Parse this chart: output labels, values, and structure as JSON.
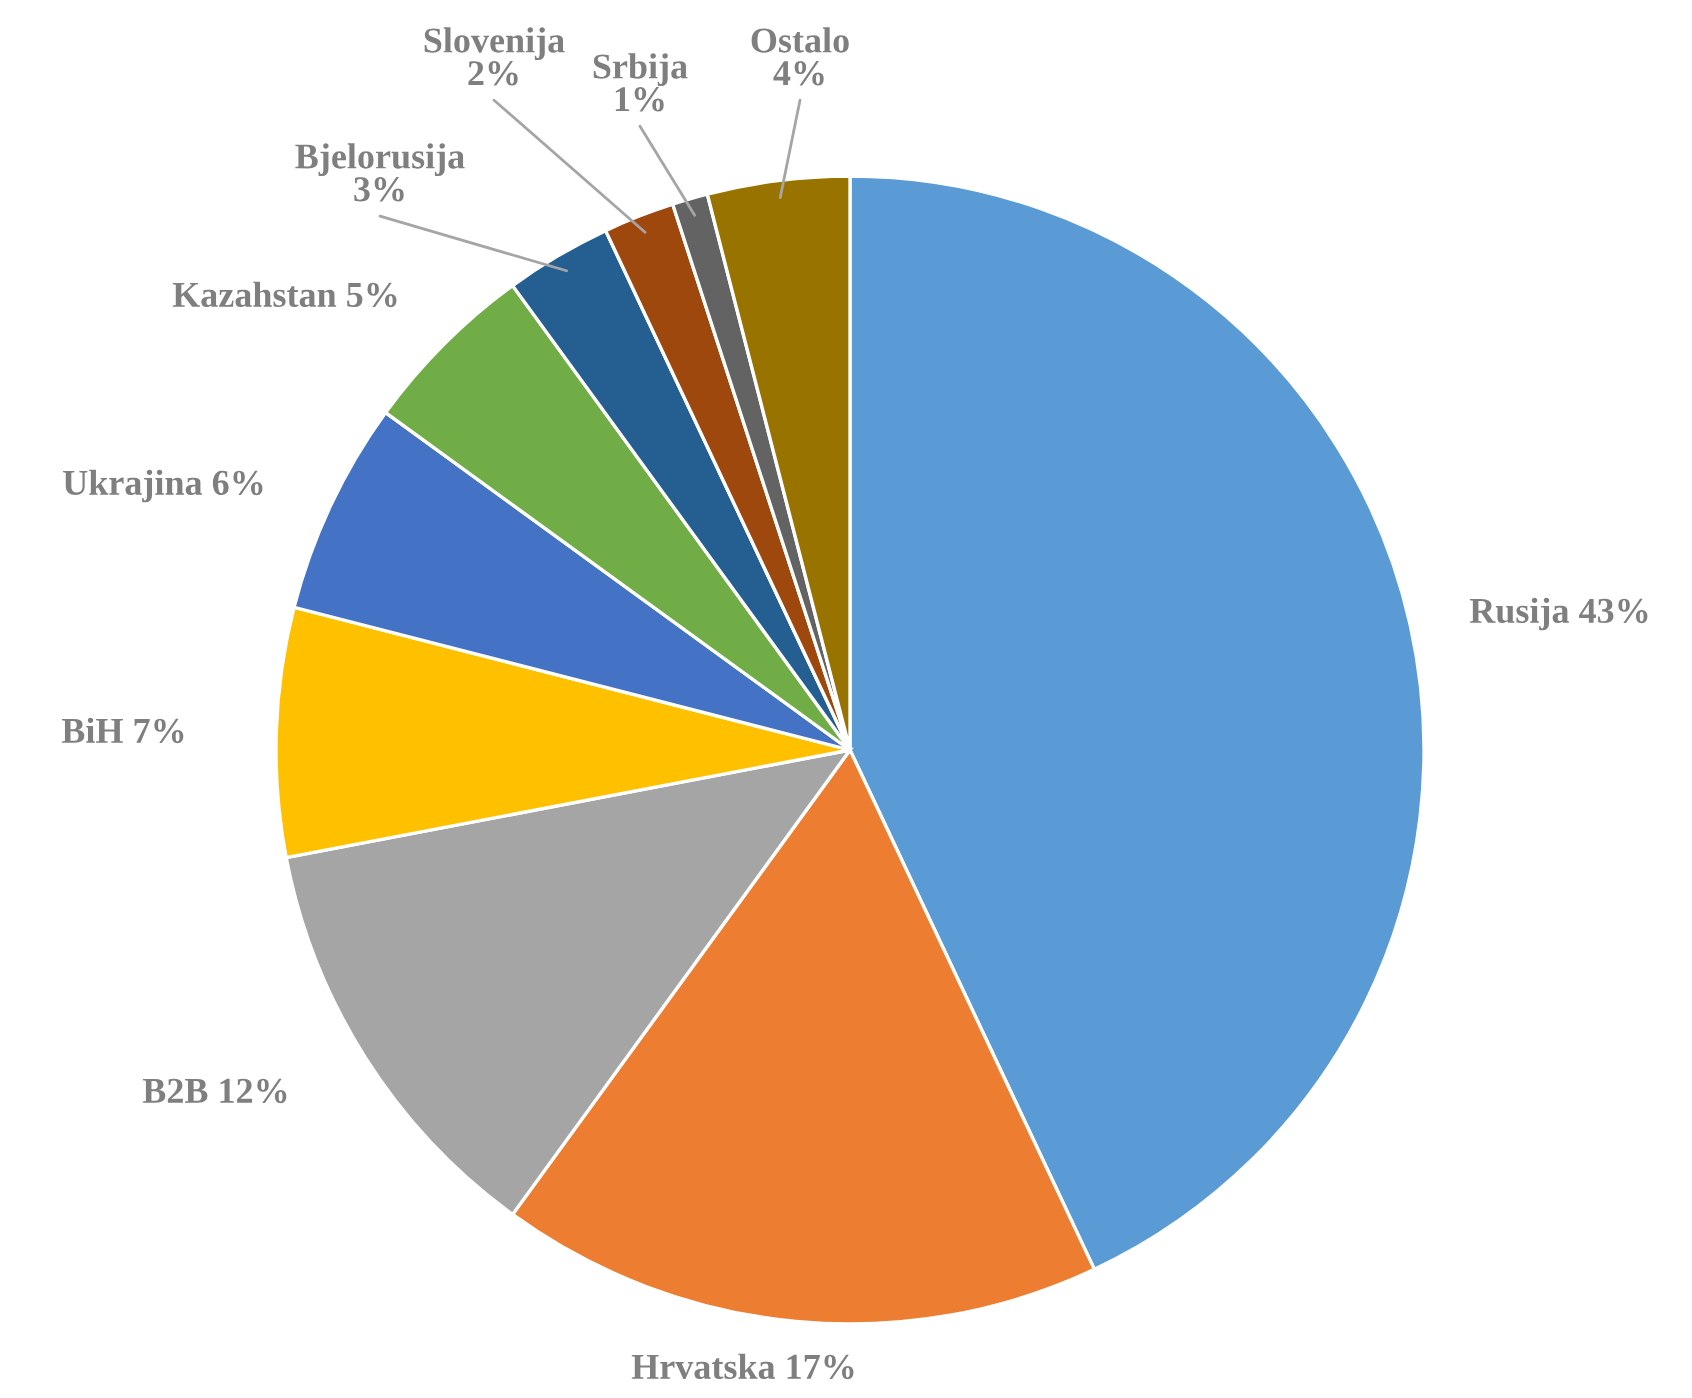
{
  "chart_data": {
    "type": "pie",
    "categories": [
      "Rusija",
      "Hrvatska",
      "B2B",
      "BiH",
      "Ukrajina",
      "Kazahstan",
      "Bjelorusija",
      "Slovenija",
      "Srbija",
      "Ostalo"
    ],
    "values": [
      43,
      17,
      12,
      7,
      6,
      5,
      3,
      2,
      1,
      4
    ],
    "value_labels": [
      "43%",
      "17%",
      "12%",
      "7%",
      "6%",
      "5%",
      "3%",
      "2%",
      "1%",
      "4%"
    ],
    "colors": [
      "#5b9bd5",
      "#ed7d31",
      "#a5a5a5",
      "#ffc000",
      "#4472c4",
      "#70ad47",
      "#255e91",
      "#9e480e",
      "#636363",
      "#997300"
    ],
    "legend": false
  }
}
